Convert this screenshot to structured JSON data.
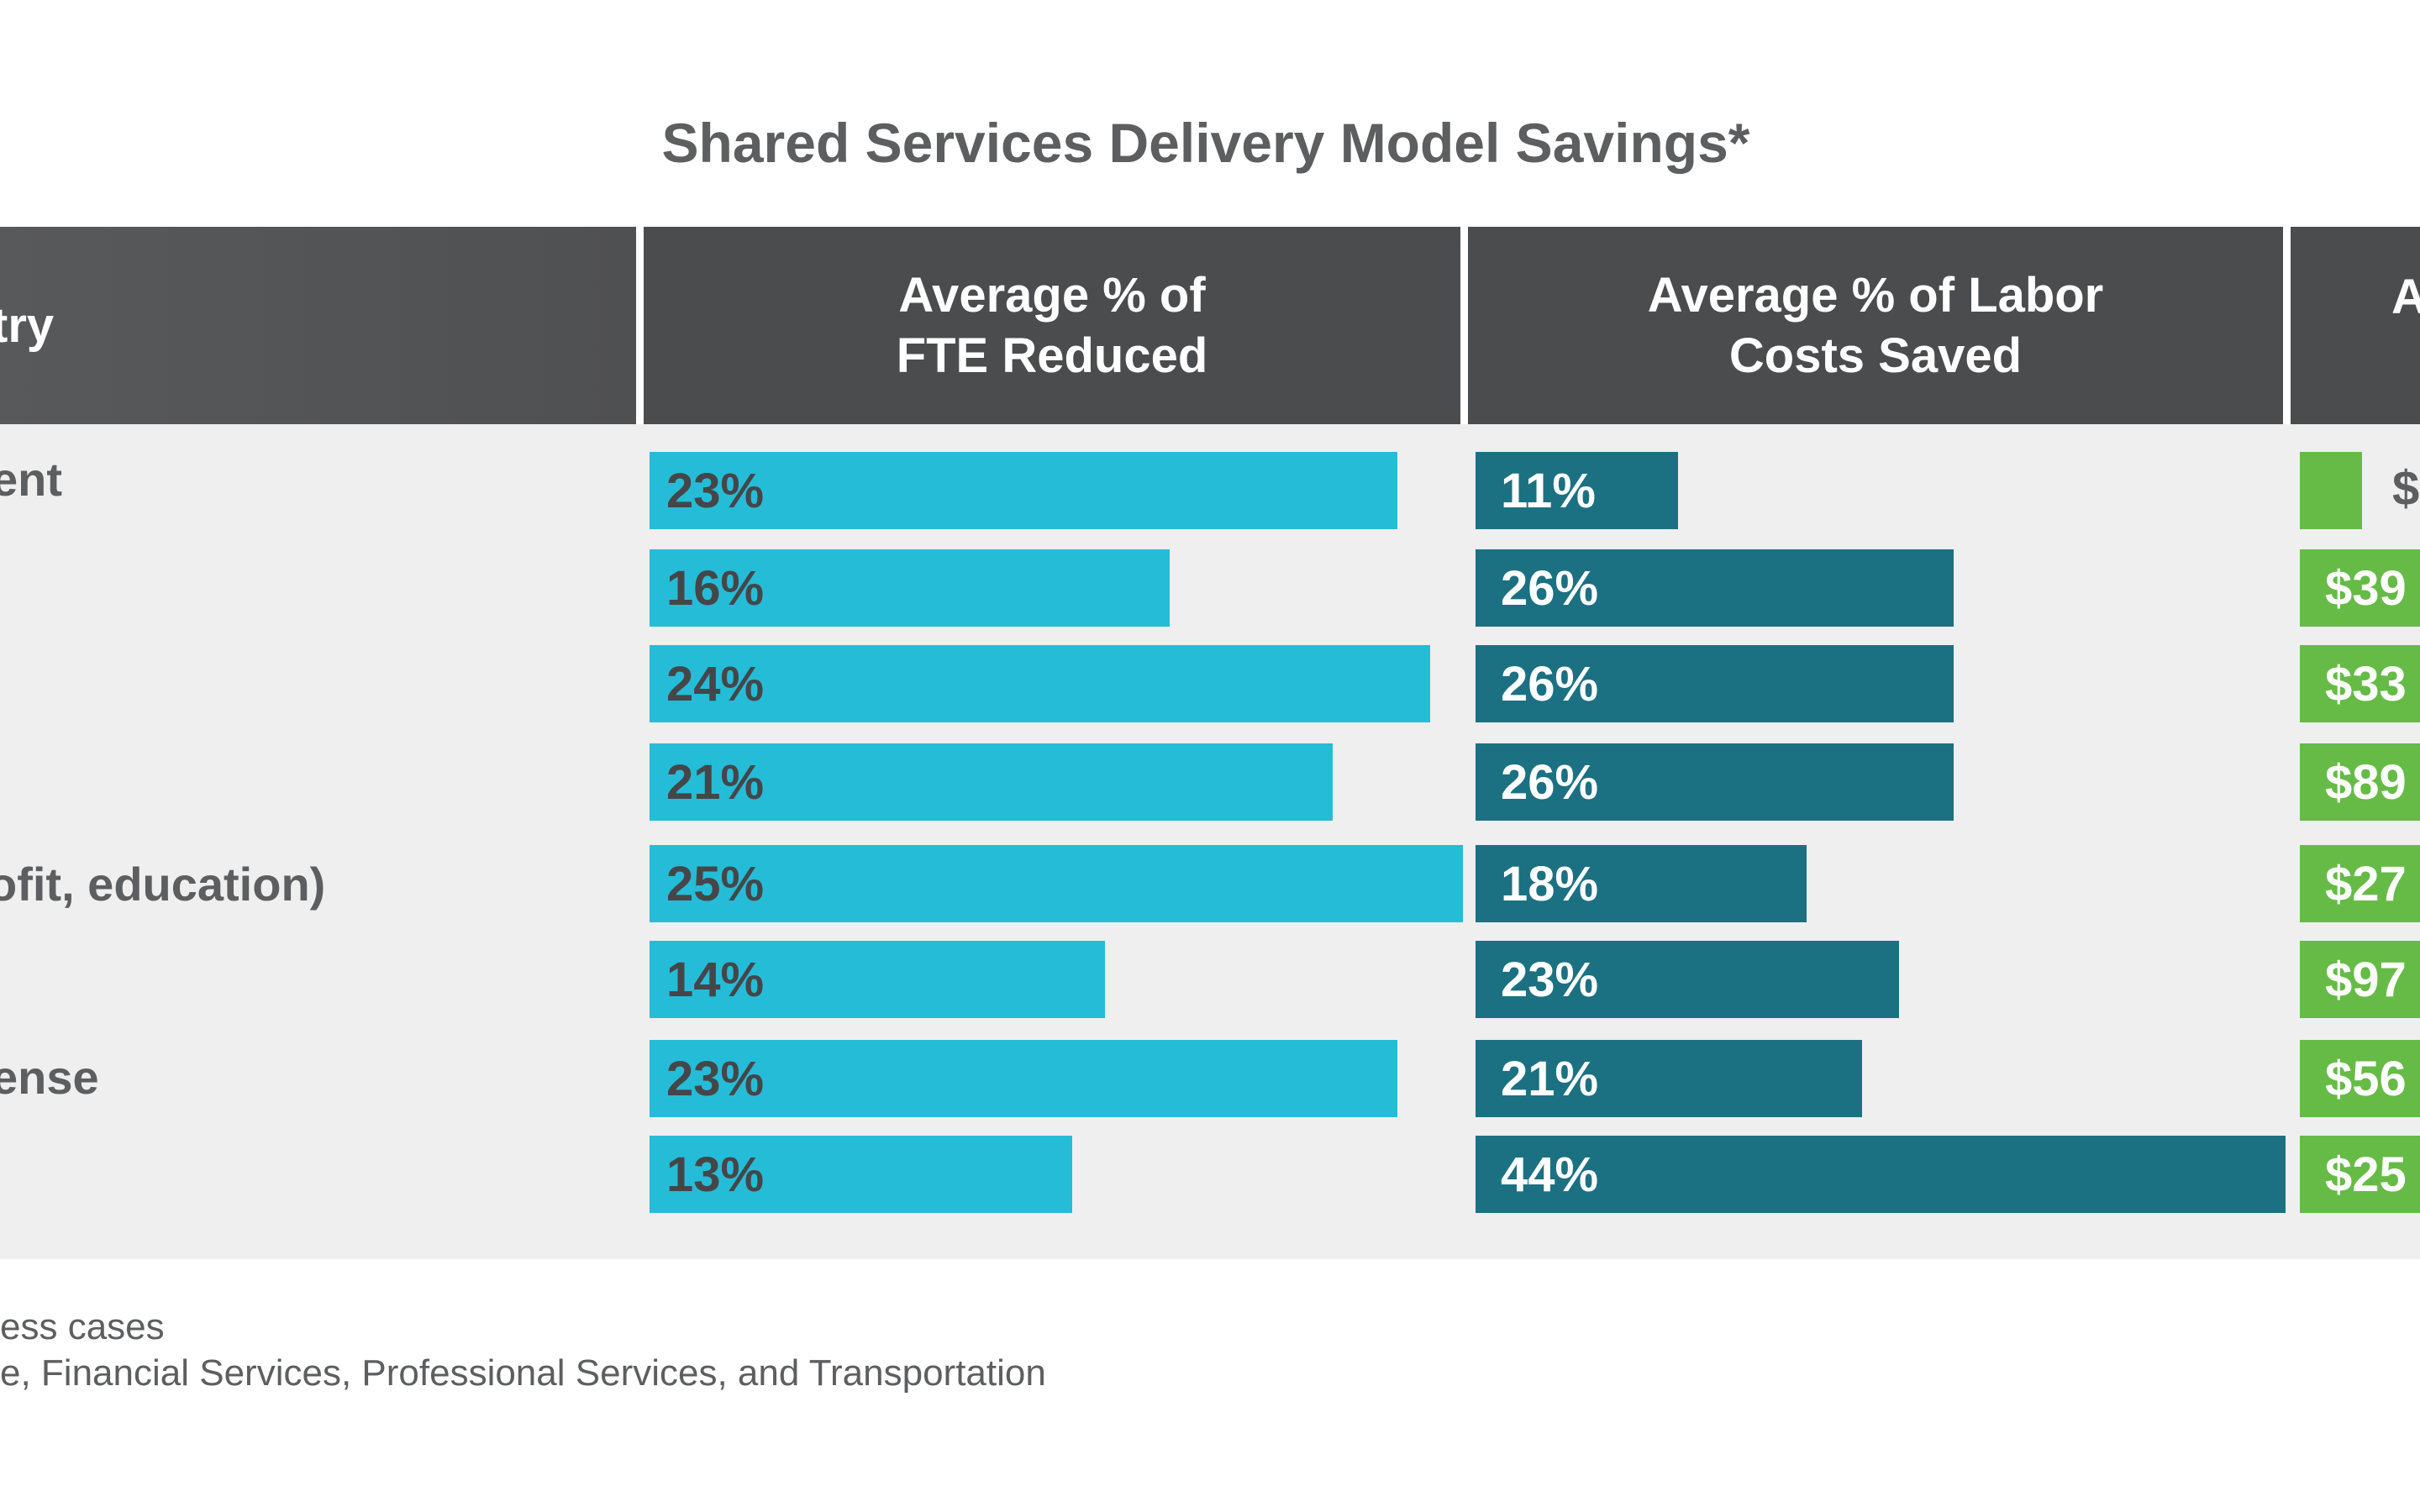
{
  "chart_data": {
    "type": "table",
    "title": "Shared Services Delivery Model Savings*",
    "columns": [
      "…try",
      "Average % of FTE Reduced",
      "Average % of Labor Costs Saved",
      "A…"
    ],
    "column_headers": {
      "industry": "try",
      "fte_line1": "Average % of",
      "fte_line2": "FTE Reduced",
      "labor_line1": "Average % of Labor",
      "labor_line2": "Costs Saved",
      "cost": "A"
    },
    "row_labels": [
      "ent",
      "",
      "",
      "",
      "ofit, education)",
      "",
      "ense",
      ""
    ],
    "series": [
      {
        "name": "Average % of FTE Reduced",
        "unit": "%",
        "values": [
          23,
          16,
          24,
          21,
          25,
          14,
          23,
          13
        ],
        "labels": [
          "23%",
          "16%",
          "24%",
          "21%",
          "25%",
          "14%",
          "23%",
          "13%"
        ]
      },
      {
        "name": "Average % of Labor Costs Saved",
        "unit": "%",
        "values": [
          11,
          26,
          26,
          26,
          18,
          23,
          21,
          44
        ],
        "labels": [
          "11%",
          "26%",
          "26%",
          "26%",
          "18%",
          "23%",
          "21%",
          "44%"
        ]
      },
      {
        "name": "A… (cost savings, truncated)",
        "labels": [
          "$",
          "$39",
          "$33",
          "$89",
          "$27",
          "$97",
          "$56",
          "$25"
        ]
      }
    ],
    "footnotes": [
      "ess cases",
      "e, Financial Services, Professional Services, and Transportation"
    ],
    "colors": {
      "fte": "#25bcd8",
      "labor": "#1b7182",
      "cost": "#65bb46",
      "header": "#4b4c4e",
      "body": "#efefef",
      "text": "#5d5e60"
    }
  }
}
